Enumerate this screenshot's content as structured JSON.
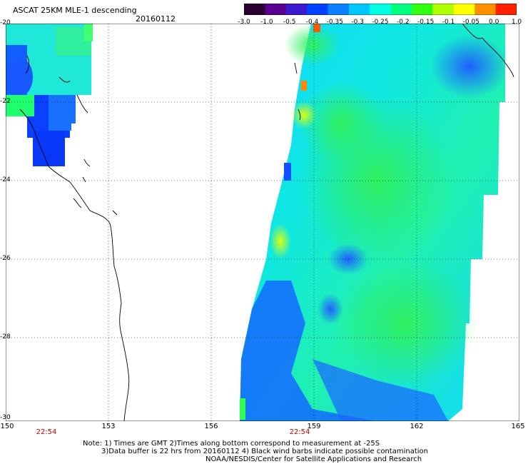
{
  "header": {
    "title": "ASCAT 25KM MLE-1 descending",
    "date": "20160112"
  },
  "colorbar": {
    "labels": [
      "-3.0",
      "-1.0",
      "-0.5",
      "-0.4",
      "-0.35",
      "-0.3",
      "-0.25",
      "-0.2",
      "-0.15",
      "-0.1",
      "-0.05",
      "0.0",
      "1.0"
    ],
    "colors": [
      "#2a0030",
      "#5a0090",
      "#3a1ad0",
      "#0040ff",
      "#0a80ff",
      "#00c8ff",
      "#00ffe0",
      "#00ff80",
      "#30ff10",
      "#b0ff00",
      "#ffff00",
      "#ff9000",
      "#ff2000"
    ]
  },
  "axes": {
    "lat_labels": [
      "-20",
      "-22",
      "-24",
      "-26",
      "-28",
      "-30"
    ],
    "lon_labels": [
      "150",
      "153",
      "156",
      "159",
      "162",
      "165"
    ],
    "pass_times": [
      "22:54",
      "22:54"
    ]
  },
  "notes": {
    "line1": "Note: 1) Times are GMT 2)Times along bottom correspond to measurement at -25S",
    "line2": "3)Data buffer is 22 hrs from 20160112 4) Black wind barbs indicate possible contamination",
    "line3": "NOAA/NESDIS/Center for Satellite Applications and Research"
  },
  "colors": {
    "land_outline": "#000000",
    "grid_line": "#000000",
    "pass_time": "#c00000"
  }
}
